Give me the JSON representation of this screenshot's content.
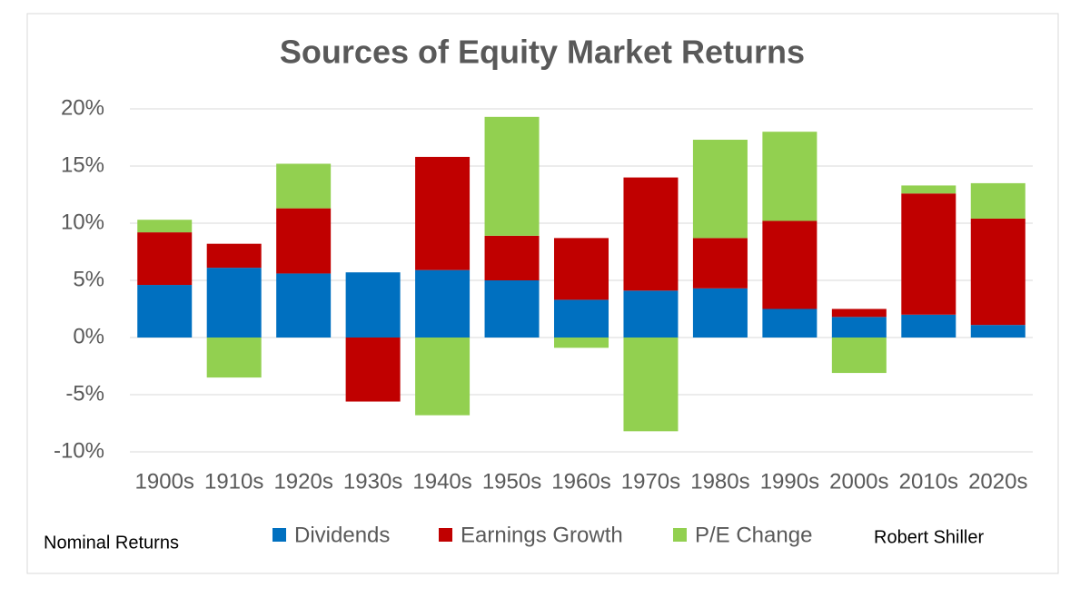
{
  "chart_data": {
    "type": "stacked_bar",
    "title": "Sources of Equity Market Returns",
    "categories": [
      "1900s",
      "1910s",
      "1920s",
      "1930s",
      "1940s",
      "1950s",
      "1960s",
      "1970s",
      "1980s",
      "1990s",
      "2000s",
      "2010s",
      "2020s"
    ],
    "series": [
      {
        "name": "Dividends",
        "color": "#0070c0",
        "values": [
          4.6,
          6.1,
          5.6,
          5.7,
          5.9,
          5.0,
          3.3,
          4.1,
          4.3,
          2.5,
          1.8,
          2.0,
          1.1
        ]
      },
      {
        "name": "Earnings Growth",
        "color": "#c00000",
        "values": [
          4.6,
          2.1,
          5.7,
          -5.6,
          9.9,
          3.9,
          5.4,
          9.9,
          4.4,
          7.7,
          0.7,
          10.6,
          9.3
        ]
      },
      {
        "name": "P/E Change",
        "color": "#92d050",
        "values": [
          1.1,
          -3.5,
          3.9,
          0,
          -6.8,
          10.4,
          -0.9,
          -8.2,
          8.6,
          7.8,
          -3.1,
          0.7,
          3.1
        ]
      }
    ],
    "ylim": [
      -10,
      20
    ],
    "yticks": [
      {
        "value": -10,
        "label": "-10%"
      },
      {
        "value": -5,
        "label": "-5%"
      },
      {
        "value": 0,
        "label": "0%"
      },
      {
        "value": 5,
        "label": "5%"
      },
      {
        "value": 10,
        "label": "10%"
      },
      {
        "value": 15,
        "label": "15%"
      },
      {
        "value": 20,
        "label": "20%"
      }
    ],
    "grid": true,
    "annotations": [
      "Nominal Returns",
      "Robert Shiller"
    ]
  }
}
